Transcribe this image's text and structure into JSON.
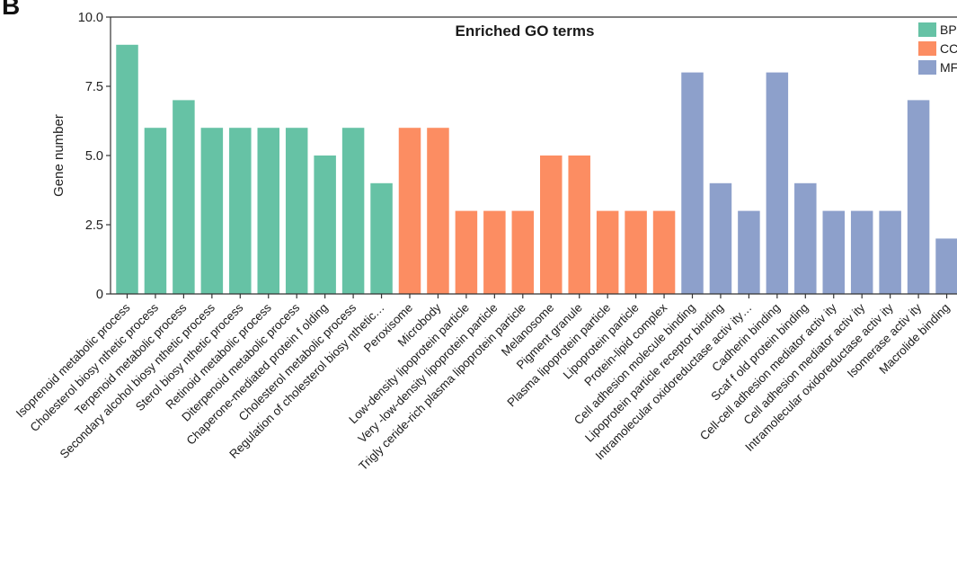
{
  "panel_label": "B",
  "chart_data": {
    "type": "bar",
    "title": "Enriched GO terms",
    "xlabel": "",
    "ylabel": "Gene number",
    "ylim": [
      0,
      10
    ],
    "yticks": [
      0,
      2.5,
      5,
      7.5,
      10
    ],
    "ytick_labels": [
      "0",
      "2.5",
      "5.0",
      "7.5",
      "10.0"
    ],
    "legend_position": "top-right",
    "legend": [
      {
        "name": "BP",
        "color": "#66c2a5"
      },
      {
        "name": "CC",
        "color": "#fc8d62"
      },
      {
        "name": "MF",
        "color": "#8da0cb"
      }
    ],
    "categories": [
      "Isoprenoid metabolic process",
      "Cholesterol biosy nthetic process",
      "Terpenoid metabolic process",
      "Secondary alcohol biosy nthetic process",
      "Sterol biosy nthetic process",
      "Retinoid metabolic process",
      "Diterpenoid metabolic process",
      "Chaperone-mediated protein f olding",
      "Cholesterol metabolic process",
      "Regulation of cholesterol biosy nthetic…",
      "Peroxisome",
      "Microbody",
      "Low-density lipoprotein particle",
      "Very -low-density lipoprotein particle",
      "Trigly ceride-rich plasma lipoprotein particle",
      "Melanosome",
      "Pigment granule",
      "Plasma lipoprotein particle",
      "Lipoprotein particle",
      "Protein-lipid complex",
      "Cell adhesion molecule binding",
      "Lipoprotein particle receptor binding",
      "Intramolecular oxidoreductase activ ity…",
      "Cadherin binding",
      "Scaf f old protein binding",
      "Cell-cell adhesion mediator activ ity",
      "Cell adhesion mediator activ ity",
      "Intramolecular oxidoreductase activ ity",
      "Isomerase activ ity",
      "Macrolide binding"
    ],
    "groups": [
      "BP",
      "BP",
      "BP",
      "BP",
      "BP",
      "BP",
      "BP",
      "BP",
      "BP",
      "BP",
      "CC",
      "CC",
      "CC",
      "CC",
      "CC",
      "CC",
      "CC",
      "CC",
      "CC",
      "CC",
      "MF",
      "MF",
      "MF",
      "MF",
      "MF",
      "MF",
      "MF",
      "MF",
      "MF",
      "MF"
    ],
    "values": [
      9,
      6,
      7,
      6,
      6,
      6,
      6,
      5,
      6,
      4,
      6,
      6,
      3,
      3,
      3,
      5,
      5,
      3,
      3,
      3,
      8,
      4,
      3,
      8,
      4,
      3,
      3,
      3,
      7,
      2
    ]
  }
}
